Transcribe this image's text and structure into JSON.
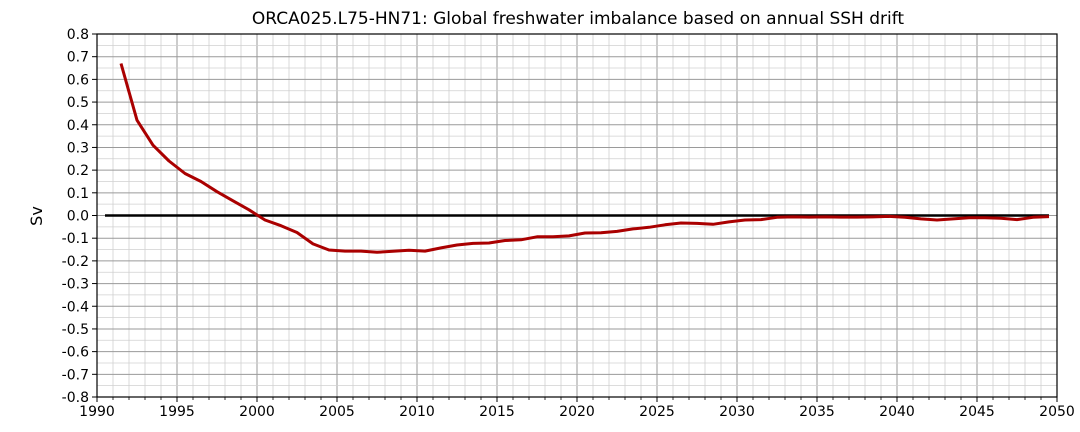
{
  "chart_data": {
    "type": "line",
    "title": "ORCA025.L75-HN71: Global freshwater imbalance based on annual SSH drift",
    "xlabel": "",
    "ylabel": "Sv",
    "xlim": [
      1990,
      2050
    ],
    "ylim": [
      -0.8,
      0.8
    ],
    "x_ticks": [
      "1990",
      "1995",
      "2000",
      "2005",
      "2010",
      "2015",
      "2020",
      "2025",
      "2030",
      "2035",
      "2040",
      "2045",
      "2050"
    ],
    "y_ticks": [
      "0.8",
      "0.7",
      "0.6",
      "0.5",
      "0.4",
      "0.3",
      "0.2",
      "0.1",
      "0.0",
      "-0.1",
      "-0.2",
      "-0.3",
      "-0.4",
      "-0.5",
      "-0.6",
      "-0.7",
      "-0.8"
    ],
    "grid": "major and minor",
    "reference_line": {
      "y": 0.0,
      "color": "#000000"
    },
    "series": [
      {
        "color": "#aa0000",
        "x": [
          1991.5,
          1992.5,
          1993.5,
          1994.5,
          1995.5,
          1996.5,
          1997.5,
          1998.5,
          1999.5,
          2000.5,
          2001.5,
          2002.5,
          2003.5,
          2004.5,
          2005.5,
          2006.5,
          2007.5,
          2008.5,
          2009.5,
          2010.5,
          2011.5,
          2012.5,
          2013.5,
          2014.5,
          2015.5,
          2016.5,
          2017.5,
          2018.5,
          2019.5,
          2020.5,
          2021.5,
          2022.5,
          2023.5,
          2024.5,
          2025.5,
          2026.5,
          2027.5,
          2028.5,
          2029.5,
          2030.5,
          2031.5,
          2032.5,
          2033.5,
          2034.5,
          2035.5,
          2036.5,
          2037.5,
          2038.5,
          2039.5,
          2040.5,
          2041.5,
          2042.5,
          2043.5,
          2044.5,
          2045.5,
          2046.5,
          2047.5,
          2048.5,
          2049.5
        ],
        "y": [
          0.67,
          0.42,
          0.31,
          0.24,
          0.185,
          0.15,
          0.105,
          0.065,
          0.025,
          -0.02,
          -0.045,
          -0.075,
          -0.125,
          -0.152,
          -0.157,
          -0.157,
          -0.162,
          -0.158,
          -0.153,
          -0.157,
          -0.143,
          -0.13,
          -0.123,
          -0.121,
          -0.11,
          -0.107,
          -0.094,
          -0.094,
          -0.09,
          -0.077,
          -0.076,
          -0.07,
          -0.059,
          -0.052,
          -0.041,
          -0.033,
          -0.035,
          -0.039,
          -0.028,
          -0.02,
          -0.018,
          -0.008,
          -0.006,
          -0.007,
          -0.006,
          -0.007,
          -0.007,
          -0.006,
          -0.004,
          -0.008,
          -0.015,
          -0.02,
          -0.015,
          -0.01,
          -0.01,
          -0.012,
          -0.018,
          -0.008,
          -0.005
        ]
      }
    ]
  }
}
